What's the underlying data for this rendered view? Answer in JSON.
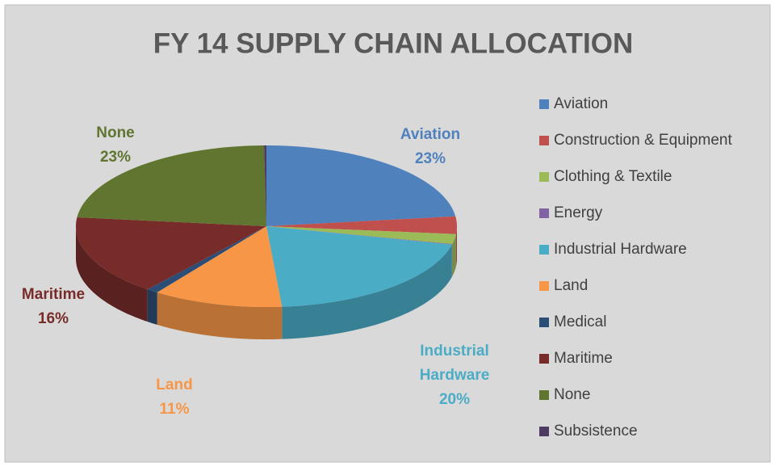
{
  "chart_data": {
    "type": "pie3d",
    "title": "FY 14 SUPPLY CHAIN ALLOCATION",
    "categories": [
      "Aviation",
      "Construction & Equipment",
      "Clothing & Textile",
      "Energy",
      "Industrial Hardware",
      "Land",
      "Medical",
      "Maritime",
      "None",
      "Subsistence"
    ],
    "values": [
      23,
      3.5,
      2,
      0.1,
      20,
      11,
      1,
      16,
      23,
      0.2
    ],
    "value_labels": [
      "23%",
      null,
      null,
      null,
      "20%",
      "11%",
      null,
      "16%",
      "23%",
      null
    ],
    "colors": [
      "#4f81bd",
      "#c0504d",
      "#9bbb59",
      "#8064a2",
      "#4bacc6",
      "#f79646",
      "#2c4d75",
      "#772c2a",
      "#5f7530",
      "#4d3b62"
    ],
    "legend": "right"
  }
}
